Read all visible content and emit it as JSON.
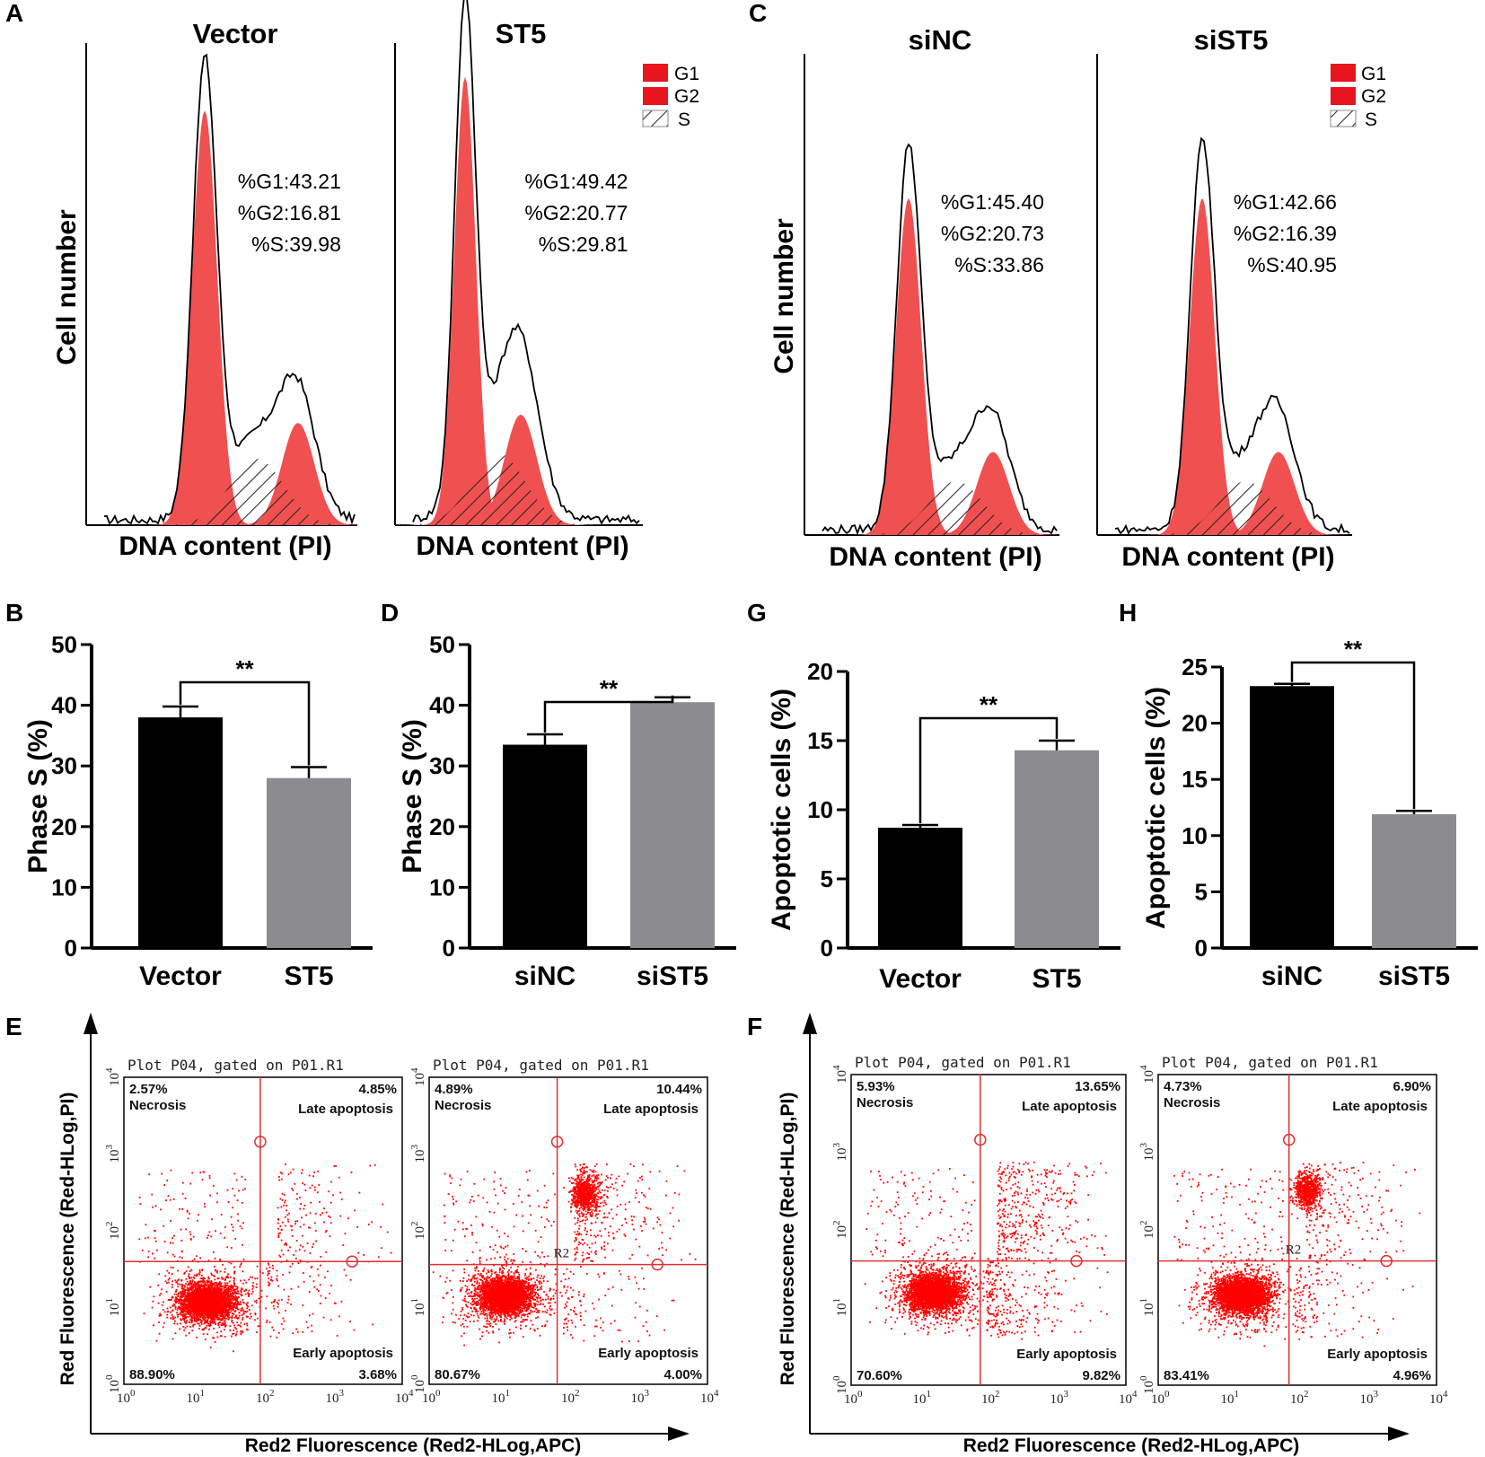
{
  "panel_labels": {
    "A": "A",
    "B": "B",
    "C": "C",
    "D": "D",
    "E": "E",
    "F": "F",
    "G": "G",
    "H": "H"
  },
  "colors": {
    "phase": "#f05050",
    "bar_dark": "#000000",
    "bar_gray": "#8c8c90",
    "dot": "#ff0000",
    "gate": "#e03030"
  },
  "histograms": {
    "legend": {
      "g1": "G1",
      "g2": "G2",
      "s": "S"
    },
    "y_label": "Cell number",
    "x_label": "DNA content (PI)",
    "panels": [
      {
        "title": "Vector",
        "stats": [
          "%G1:43.21",
          "%G2:16.81",
          "%S:39.98"
        ],
        "g1": 43.21,
        "g2": 16.81,
        "s": 39.98
      },
      {
        "title": "ST5",
        "stats": [
          "%G1:49.42",
          "%G2:20.77",
          "%S:29.81"
        ],
        "g1": 49.42,
        "g2": 20.77,
        "s": 29.81
      },
      {
        "title": "siNC",
        "stats": [
          "%G1:45.40",
          "%G2:20.73",
          "%S:33.86"
        ],
        "g1": 45.4,
        "g2": 20.73,
        "s": 33.86
      },
      {
        "title": "siST5",
        "stats": [
          "%G1:42.66",
          "%G2:16.39",
          "%S:40.95"
        ],
        "g1": 42.66,
        "g2": 16.39,
        "s": 40.95
      }
    ]
  },
  "chart_data": [
    {
      "panel": "B",
      "type": "bar",
      "categories": [
        "Vector",
        "ST5"
      ],
      "values": [
        38,
        28
      ],
      "errors": [
        1.8,
        1.8
      ],
      "ylabel": "Phase S (%)",
      "ylim": [
        0,
        50
      ],
      "yticks": [
        "0",
        "10",
        "20",
        "30",
        "40",
        "50"
      ],
      "significance": "**"
    },
    {
      "panel": "D",
      "type": "bar",
      "categories": [
        "siNC",
        "siST5"
      ],
      "values": [
        33.5,
        40.5
      ],
      "errors": [
        1.7,
        0.8
      ],
      "ylabel": "Phase S (%)",
      "ylim": [
        0,
        50
      ],
      "yticks": [
        "0",
        "10",
        "20",
        "30",
        "40",
        "50"
      ],
      "significance": "**"
    },
    {
      "panel": "G",
      "type": "bar",
      "categories": [
        "Vector",
        "ST5"
      ],
      "values": [
        8.7,
        14.3
      ],
      "errors": [
        0.2,
        0.7
      ],
      "ylabel": "Apoptotic cells (%)",
      "ylim": [
        0,
        20
      ],
      "yticks": [
        "0",
        "5",
        "10",
        "15",
        "20"
      ],
      "significance": "**"
    },
    {
      "panel": "H",
      "type": "bar",
      "categories": [
        "siNC",
        "siST5"
      ],
      "values": [
        23.3,
        11.9
      ],
      "errors": [
        0.2,
        0.3
      ],
      "ylabel": "Apoptotic cells (%)",
      "ylim": [
        0,
        25
      ],
      "yticks": [
        "0",
        "5",
        "10",
        "15",
        "20",
        "25"
      ],
      "significance": "**"
    }
  ],
  "flow": {
    "title": "Plot P04, gated on P01.R1",
    "y_label": "Red Fluorescence (Red-HLog,PI)",
    "x_label": "Red2 Fluorescence (Red2-HLog,APC)",
    "quad_labels": {
      "ul": "Necrosis",
      "ur": "Late apoptosis",
      "lr": "Early apoptosis"
    },
    "gate_label": "R2",
    "ticks": [
      "0",
      "1",
      "2",
      "3",
      "4"
    ],
    "plots": [
      {
        "ul": "2.57%",
        "ur": "4.85%",
        "ll": "88.90%",
        "lr": "3.68%"
      },
      {
        "ul": "4.89%",
        "ur": "10.44%",
        "ll": "80.67%",
        "lr": "4.00%"
      },
      {
        "ul": "5.93%",
        "ur": "13.65%",
        "ll": "70.60%",
        "lr": "9.82%"
      },
      {
        "ul": "4.73%",
        "ur": "6.90%",
        "ll": "83.41%",
        "lr": "4.96%"
      }
    ]
  }
}
